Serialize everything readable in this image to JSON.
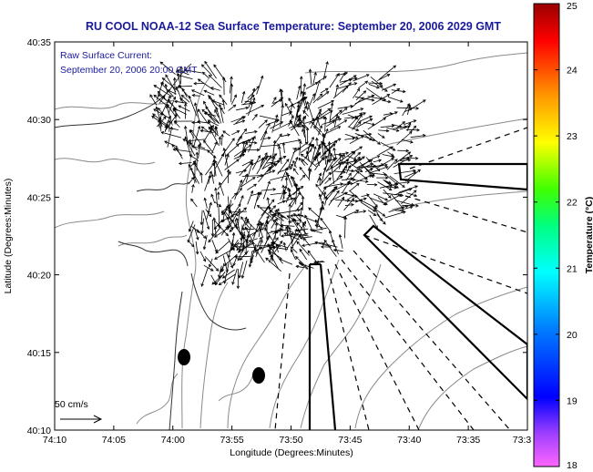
{
  "title": "RU COOL  NOAA-12  Sea Surface Temperature:  September 20, 2006 2029 GMT",
  "annotation": {
    "line1": "Raw Surface Current:",
    "line2": "September 20, 2006 20:00 GMT"
  },
  "scale_label": "50 cm/s",
  "xlabel": "Longitude (Degrees:Minutes)",
  "ylabel": "Latitude (Degrees:Minutes)",
  "x_ticks": [
    "74:10",
    "74:05",
    "74:00",
    "73:55",
    "73:50",
    "73:45",
    "73:40",
    "73:35",
    "73:3"
  ],
  "y_ticks": [
    "40:35",
    "40:30",
    "40:25",
    "40:20",
    "40:15",
    "40:10"
  ],
  "colorbar": {
    "label": "Temperature (°C)",
    "ticks": [
      "25",
      "24",
      "23",
      "22",
      "21",
      "20",
      "19",
      "18"
    ],
    "min": 18,
    "max": 25
  },
  "colors": {
    "title": "#1a1a9c",
    "frame": "#000000",
    "contour": "#8a8a8a"
  }
}
